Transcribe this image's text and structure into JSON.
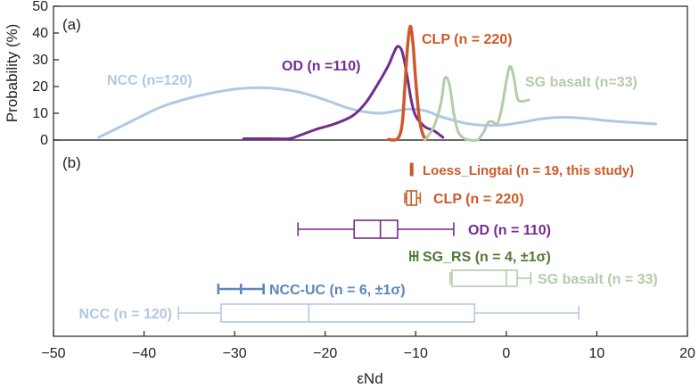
{
  "chart_data": {
    "type": "line+boxplot",
    "xlabel": "εNd",
    "xlim": [
      -50,
      20
    ],
    "x_ticks": [
      -50,
      -40,
      -30,
      -20,
      -10,
      0,
      10,
      20
    ],
    "x_tick_labels": [
      "−50",
      "−40",
      "−30",
      "−20",
      "−10",
      "0",
      "10",
      "20"
    ],
    "panels": [
      {
        "id": "a",
        "label": "(a)",
        "kind": "probability-density",
        "ylabel": "Probability (%)",
        "ylim": [
          0,
          50
        ],
        "y_ticks": [
          0,
          10,
          20,
          30,
          40,
          50
        ],
        "series": [
          {
            "name": "NCC (n=120)",
            "color": "#b0c8e4",
            "points": [
              [
                -45,
                1
              ],
              [
                -42,
                6
              ],
              [
                -38,
                12.5
              ],
              [
                -34,
                16.5
              ],
              [
                -30,
                19
              ],
              [
                -26.5,
                19.5
              ],
              [
                -23,
                18
              ],
              [
                -20,
                15
              ],
              [
                -17,
                11.5
              ],
              [
                -14,
                10
              ],
              [
                -11,
                11.5
              ],
              [
                -9,
                11
              ],
              [
                -7,
                8.5
              ],
              [
                -4,
                6
              ],
              [
                -1,
                5.5
              ],
              [
                1.5,
                6.5
              ],
              [
                4,
                8
              ],
              [
                6.5,
                8.5
              ],
              [
                9,
                8
              ],
              [
                12,
                7
              ],
              [
                16.5,
                6
              ]
            ]
          },
          {
            "name": "OD (n =110)",
            "color": "#722c8e",
            "points": [
              [
                -29,
                0.5
              ],
              [
                -26,
                0.5
              ],
              [
                -24,
                0.5
              ],
              [
                -23,
                1.5
              ],
              [
                -21,
                4
              ],
              [
                -19,
                6
              ],
              [
                -17,
                9
              ],
              [
                -15.5,
                14
              ],
              [
                -14,
                22
              ],
              [
                -13,
                28
              ],
              [
                -12.5,
                32
              ],
              [
                -12,
                35
              ],
              [
                -11.5,
                33
              ],
              [
                -11,
                25
              ],
              [
                -10.5,
                15
              ],
              [
                -10,
                9
              ],
              [
                -9,
                5
              ],
              [
                -8,
                3.5
              ],
              [
                -7,
                1
              ]
            ]
          },
          {
            "name": "CLP (n = 220)",
            "color": "#cc5a2a",
            "points": [
              [
                -13,
                0.2
              ],
              [
                -12,
                0.5
              ],
              [
                -11.5,
                6
              ],
              [
                -11.2,
                20
              ],
              [
                -10.9,
                35
              ],
              [
                -10.6,
                42.5
              ],
              [
                -10.3,
                36
              ],
              [
                -10,
                22
              ],
              [
                -9.6,
                8
              ],
              [
                -9.2,
                2
              ],
              [
                -8.8,
                0.2
              ]
            ]
          },
          {
            "name": "SG basalt (n=33)",
            "color": "#b3ccaa",
            "points": [
              [
                -9,
                0
              ],
              [
                -8,
                5
              ],
              [
                -7.2,
                14
              ],
              [
                -6.8,
                23
              ],
              [
                -6.3,
                21
              ],
              [
                -5.8,
                10
              ],
              [
                -5.3,
                3
              ],
              [
                -4.6,
                0.5
              ],
              [
                -4,
                0
              ],
              [
                -3.2,
                0
              ],
              [
                -2.5,
                3
              ],
              [
                -2,
                6.5
              ],
              [
                -1.5,
                6.8
              ],
              [
                -1,
                6
              ],
              [
                -0.5,
                12
              ],
              [
                0,
                22
              ],
              [
                0.4,
                27.5
              ],
              [
                0.8,
                24
              ],
              [
                1.2,
                16
              ],
              [
                1.6,
                14.5
              ],
              [
                2.5,
                15
              ]
            ]
          }
        ]
      },
      {
        "id": "b",
        "label": "(b)",
        "kind": "boxplot",
        "series": [
          {
            "name": "Loess_Lingtai (n = 19, this study)",
            "color": "#cc5a2a",
            "style": "box",
            "whisker_low": -10.55,
            "q1": -10.5,
            "median": -10.45,
            "q3": -10.4,
            "whisker_high": -10.35
          },
          {
            "name": "CLP (n = 220)",
            "color": "#cc5a2a",
            "style": "box",
            "whisker_low": -11.2,
            "q1": -11,
            "median": -10.5,
            "q3": -9.9,
            "whisker_high": -9.5
          },
          {
            "name": "OD (n = 110)",
            "color": "#722c8e",
            "style": "box",
            "whisker_low": -23,
            "q1": -16.8,
            "median": -13.9,
            "q3": -12,
            "whisker_high": -5.8
          },
          {
            "name": "SG_RS (n = 4, ±1σ)",
            "color": "#4e7a34",
            "style": "errorbar",
            "low": -10.6,
            "center": -10.2,
            "high": -9.8
          },
          {
            "name": "SG basalt (n = 33)",
            "color": "#b3ccaa",
            "style": "box",
            "whisker_low": -6.2,
            "q1": -6,
            "median": 0,
            "q3": 1.2,
            "whisker_high": 2.7
          },
          {
            "name": "NCC-UC (n = 6, ±1σ)",
            "color": "#5b86bb",
            "style": "errorbar",
            "low": -31.8,
            "center": -29.3,
            "high": -26.8
          },
          {
            "name": "NCC (n = 120)",
            "color": "#b0c8e4",
            "style": "box",
            "whisker_low": -36.2,
            "q1": -31.5,
            "median": -21.8,
            "q3": -3.5,
            "whisker_high": 8
          }
        ]
      }
    ]
  }
}
